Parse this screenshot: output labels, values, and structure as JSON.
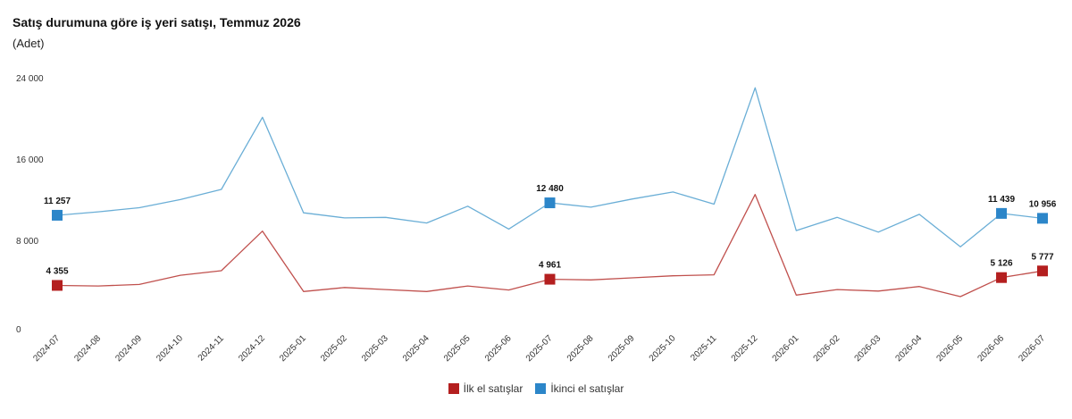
{
  "header": {
    "title": "Satış durumuna göre iş yeri satışı, Temmuz 2026",
    "subtitle": "(Adet)"
  },
  "colors": {
    "first_hand": "#b41f1f",
    "second_hand": "#2c86c9",
    "first_line": "#c0504d",
    "second_line": "#6aaed6"
  },
  "chart_data": {
    "type": "line",
    "title": "Satış durumuna göre iş yeri satışı, Temmuz 2026",
    "ylabel": "(Adet)",
    "ylim": [
      0,
      24000
    ],
    "yticks": [
      0,
      8000,
      16000,
      24000
    ],
    "ytick_labels": [
      "0",
      "8 000",
      "16 000",
      "24 000"
    ],
    "grid": false,
    "legend": "bottom-center",
    "x": [
      "2024-07",
      "2024-08",
      "2024-09",
      "2024-10",
      "2024-11",
      "2024-12",
      "2025-01",
      "2025-02",
      "2025-03",
      "2025-04",
      "2025-05",
      "2025-06",
      "2025-07",
      "2025-08",
      "2025-09",
      "2025-10",
      "2025-11",
      "2025-12",
      "2026-01",
      "2026-02",
      "2026-03",
      "2026-04",
      "2026-05",
      "2026-06",
      "2026-07"
    ],
    "series": [
      {
        "name": "İlk el satışlar",
        "values": [
          4355,
          4300,
          4450,
          5350,
          5800,
          9700,
          3750,
          4150,
          3950,
          3750,
          4300,
          3900,
          4961,
          4900,
          5100,
          5300,
          5400,
          13300,
          3400,
          3950,
          3800,
          4250,
          3250,
          5126,
          5777
        ],
        "markers": [
          {
            "index": 0,
            "label": "4 355"
          },
          {
            "index": 12,
            "label": "4 961"
          },
          {
            "index": 23,
            "label": "5 126"
          },
          {
            "index": 24,
            "label": "5 777"
          }
        ]
      },
      {
        "name": "İkinci el satışlar",
        "values": [
          11257,
          11600,
          12000,
          12800,
          13800,
          20900,
          11500,
          11000,
          11050,
          10500,
          12150,
          9900,
          12480,
          12050,
          12850,
          13550,
          12350,
          23800,
          9750,
          11050,
          9600,
          11350,
          8150,
          11439,
          10956
        ],
        "markers": [
          {
            "index": 0,
            "label": "11 257"
          },
          {
            "index": 12,
            "label": "12 480"
          },
          {
            "index": 23,
            "label": "11 439"
          },
          {
            "index": 24,
            "label": "10 956"
          }
        ]
      }
    ]
  }
}
